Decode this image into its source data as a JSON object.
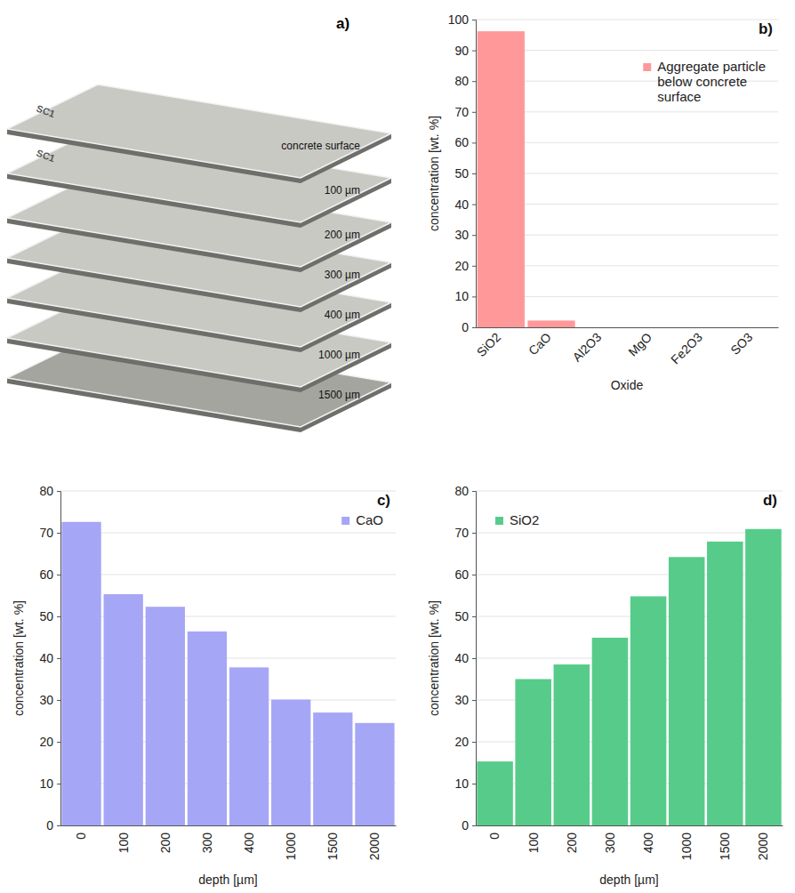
{
  "diagram": {
    "panel_label": "a)",
    "sample_label": "SC1",
    "layers": [
      "concrete surface",
      "100 µm",
      "200 µm",
      "300 µm",
      "400 µm",
      "1000 µm",
      "1500 µm"
    ]
  },
  "chart_data": [
    {
      "type": "bar",
      "panel_label": "b)",
      "x_label": "Oxide",
      "y_label": "concentration [wt. %]",
      "categories": [
        "SiO2",
        "CaO",
        "Al2O3",
        "MgO",
        "Fe2O3",
        "SO3"
      ],
      "series": [
        {
          "name": "Aggregate particle below concrete surface",
          "color": "#ff9999",
          "values": [
            96.2,
            2.2,
            0,
            0,
            0,
            0
          ]
        }
      ],
      "ylim": [
        0,
        100
      ],
      "yticks": [
        0,
        10,
        20,
        30,
        40,
        50,
        60,
        70,
        80,
        90,
        100
      ],
      "grid": true,
      "legend": "top-right"
    },
    {
      "type": "bar",
      "panel_label": "c)",
      "x_label": "depth [µm]",
      "y_label": "concentration [wt. %]",
      "categories": [
        "0",
        "100",
        "200",
        "300",
        "400",
        "1000",
        "1500",
        "2000"
      ],
      "series": [
        {
          "name": "CaO",
          "color": "#a6a6f7",
          "values": [
            72.6,
            55.3,
            52.3,
            46.4,
            37.8,
            30.1,
            27.0,
            24.5
          ]
        }
      ],
      "ylim": [
        0,
        80
      ],
      "yticks": [
        0,
        10,
        20,
        30,
        40,
        50,
        60,
        70,
        80
      ],
      "grid": true,
      "legend": "top-right"
    },
    {
      "type": "bar",
      "panel_label": "d)",
      "x_label": "depth [µm]",
      "y_label": "concentration [wt. %]",
      "categories": [
        "0",
        "100",
        "200",
        "300",
        "400",
        "1000",
        "1500",
        "2000"
      ],
      "series": [
        {
          "name": "SiO2",
          "color": "#57cc8a",
          "values": [
            15.3,
            35.0,
            38.5,
            44.9,
            54.8,
            64.2,
            67.9,
            70.9
          ]
        }
      ],
      "ylim": [
        0,
        80
      ],
      "yticks": [
        0,
        10,
        20,
        30,
        40,
        50,
        60,
        70,
        80
      ],
      "grid": true,
      "legend": "top-left"
    }
  ]
}
